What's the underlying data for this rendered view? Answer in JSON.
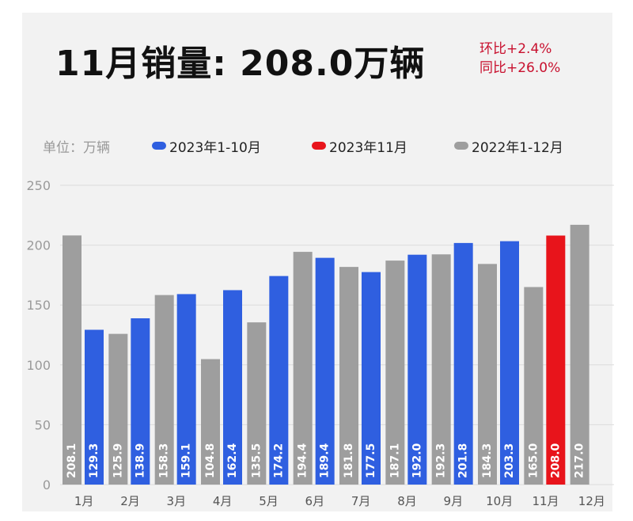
{
  "header": {
    "title": "11月销量: 208.0万辆",
    "mom": "环比+2.4%",
    "yoy": "同比+26.0%"
  },
  "unit_label": "单位：万辆",
  "chart_data": {
    "type": "bar",
    "categories": [
      "1月",
      "2月",
      "3月",
      "4月",
      "5月",
      "6月",
      "7月",
      "8月",
      "9月",
      "10月",
      "11月",
      "12月"
    ],
    "series": [
      {
        "name": "2022年1-12月",
        "color": "#9e9e9e",
        "values": [
          208.1,
          125.9,
          158.3,
          104.8,
          135.5,
          194.4,
          181.8,
          187.1,
          192.3,
          184.3,
          165.0,
          217.0
        ]
      },
      {
        "name": "2023年1-10月",
        "color": "#2f5fe0",
        "values": [
          129.3,
          138.9,
          159.1,
          162.4,
          174.2,
          189.4,
          177.5,
          192.0,
          201.8,
          203.3,
          null,
          null
        ]
      },
      {
        "name": "2023年11月",
        "color": "#e8141b",
        "values": [
          null,
          null,
          null,
          null,
          null,
          null,
          null,
          null,
          null,
          null,
          208.0,
          null
        ]
      }
    ],
    "legend_order": [
      "2023年1-10月",
      "2023年11月",
      "2022年1-12月"
    ],
    "ylim": [
      0,
      250
    ],
    "yticks": [
      0,
      50,
      100,
      150,
      200,
      250
    ],
    "grid": true,
    "legend_position": "top",
    "data_labels": "inside-bar-bottom"
  }
}
